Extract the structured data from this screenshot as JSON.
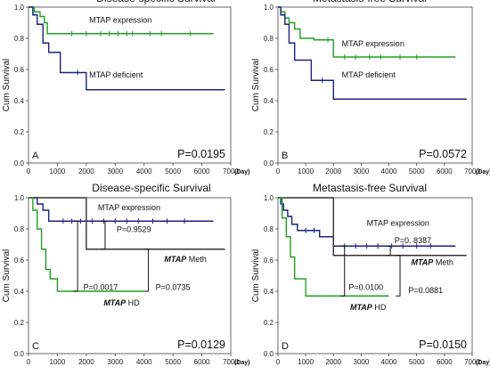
{
  "chart_data": [
    {
      "panel": "A",
      "type": "line",
      "title": "Disease-specific Survival",
      "ylabel": "Cum Survival",
      "x_unit": "(Day)",
      "pvalue": "P=0.0195",
      "xlim": [
        0,
        7000
      ],
      "ylim": [
        0,
        1.0
      ],
      "xticks": [
        "0",
        "1000",
        "2000",
        "3000",
        "4000",
        "5000",
        "6000",
        "7000"
      ],
      "yticks": [
        "0.0",
        "0.2",
        "0.4",
        "0.6",
        "0.8",
        "1.0"
      ],
      "series": [
        {
          "name": "MTAP expression",
          "color": "#22a022",
          "x": [
            0,
            200,
            400,
            550,
            650,
            6400
          ],
          "y": [
            1.0,
            0.97,
            0.94,
            0.9,
            0.83,
            0.83
          ],
          "censor_x": [
            1500,
            2000,
            2500,
            2800,
            3100,
            3400,
            3600,
            4200,
            4600,
            5600
          ]
        },
        {
          "name": "MTAP deficient",
          "color": "#1a237e",
          "x": [
            0,
            150,
            300,
            500,
            700,
            1100,
            1500,
            2000,
            6800
          ],
          "y": [
            1.0,
            0.95,
            0.89,
            0.77,
            0.71,
            0.58,
            0.58,
            0.47,
            0.47
          ],
          "censor_x": [
            1700
          ]
        }
      ],
      "labels": [
        {
          "text": "MTAP expression",
          "x": 2100,
          "y": 0.9,
          "italic_prefix": ""
        },
        {
          "text": "MTAP deficient",
          "x": 2100,
          "y": 0.55,
          "italic_prefix": ""
        }
      ],
      "brackets": []
    },
    {
      "panel": "B",
      "type": "line",
      "title": "Metastasis-free Survival",
      "ylabel": "Cum Survival",
      "x_unit": "(Day)",
      "pvalue": "P=0.0572",
      "xlim": [
        0,
        7000
      ],
      "ylim": [
        0,
        1.0
      ],
      "xticks": [
        "0",
        "1000",
        "2000",
        "3000",
        "4000",
        "5000",
        "6000",
        "7000"
      ],
      "yticks": [
        "0.0",
        "0.2",
        "0.4",
        "0.6",
        "0.8",
        "1.0"
      ],
      "series": [
        {
          "name": "MTAP expression",
          "color": "#22a022",
          "x": [
            0,
            100,
            250,
            400,
            600,
            800,
            1300,
            2000,
            6400
          ],
          "y": [
            1.0,
            0.97,
            0.93,
            0.9,
            0.86,
            0.8,
            0.79,
            0.68,
            0.68
          ],
          "censor_x": [
            1800,
            2400,
            2800,
            3300,
            3700,
            4400,
            5000
          ]
        },
        {
          "name": "MTAP deficient",
          "color": "#1a237e",
          "x": [
            0,
            100,
            250,
            400,
            600,
            1000,
            1200,
            2000,
            6800
          ],
          "y": [
            1.0,
            0.95,
            0.89,
            0.77,
            0.66,
            0.66,
            0.53,
            0.41,
            0.41
          ],
          "censor_x": [
            1600
          ]
        }
      ],
      "labels": [
        {
          "text": "MTAP expression",
          "x": 2300,
          "y": 0.75,
          "italic_prefix": ""
        },
        {
          "text": "MTAP deficient",
          "x": 2300,
          "y": 0.55,
          "italic_prefix": ""
        }
      ],
      "brackets": []
    },
    {
      "panel": "C",
      "type": "line",
      "title": "Disease-specific Survival",
      "ylabel": "Cum Survival",
      "x_unit": "(Day)",
      "pvalue": "P=0.0129",
      "xlim": [
        0,
        7000
      ],
      "ylim": [
        0,
        1.0
      ],
      "xticks": [
        "0",
        "1000",
        "2000",
        "3000",
        "4000",
        "5000",
        "6000",
        "7000"
      ],
      "yticks": [
        "0.0",
        "0.2",
        "0.4",
        "0.6",
        "0.8",
        "1.0"
      ],
      "series": [
        {
          "name": "MTAP expression",
          "color": "#1a237e",
          "x": [
            0,
            300,
            500,
            700,
            6400
          ],
          "y": [
            1.0,
            0.96,
            0.92,
            0.85,
            0.85
          ],
          "censor_x": [
            1200,
            1500,
            1800,
            2200,
            2600,
            3000,
            3400,
            3800,
            4300,
            4800,
            5400
          ]
        },
        {
          "name": "MTAP Meth",
          "color": "#333333",
          "x": [
            0,
            1000,
            2000,
            6800
          ],
          "y": [
            1.0,
            1.0,
            0.67,
            0.67
          ],
          "censor_x": []
        },
        {
          "name": "MTAP HD",
          "color": "#22a022",
          "x": [
            0,
            150,
            300,
            450,
            600,
            750,
            1000,
            4000
          ],
          "y": [
            1.0,
            0.92,
            0.8,
            0.67,
            0.54,
            0.48,
            0.4,
            0.4
          ],
          "censor_x": []
        }
      ],
      "labels": [
        {
          "text": "MTAP expression",
          "x": 2400,
          "y": 0.92,
          "italic_prefix": ""
        },
        {
          "text": "Meth",
          "x": 4700,
          "y": 0.59,
          "italic_prefix": "MTAP"
        },
        {
          "text": "HD",
          "x": 2600,
          "y": 0.31,
          "italic_prefix": "MTAP"
        },
        {
          "text": "P=0.9529",
          "x": 3050,
          "y": 0.78,
          "italic_prefix": ""
        },
        {
          "text": "P=0.0017",
          "x": 1900,
          "y": 0.41,
          "italic_prefix": ""
        },
        {
          "text": "P=0.0735",
          "x": 4400,
          "y": 0.41,
          "italic_prefix": ""
        }
      ],
      "brackets": [
        {
          "x1": 2650,
          "y1": 0.85,
          "x2": 2650,
          "y2": 0.67,
          "tick": 150
        },
        {
          "x1": 1700,
          "y1": 0.85,
          "x2": 1700,
          "y2": 0.4,
          "tick": 150
        },
        {
          "x1": 4150,
          "y1": 0.67,
          "x2": 4150,
          "y2": 0.4,
          "tick": 150
        }
      ]
    },
    {
      "panel": "D",
      "type": "line",
      "title": "Metastasis-free Survival",
      "ylabel": "Cum Survival",
      "x_unit": "(Day)",
      "pvalue": "P=0.0150",
      "xlim": [
        0,
        7000
      ],
      "ylim": [
        0,
        1.0
      ],
      "xticks": [
        "0",
        "1000",
        "2000",
        "3000",
        "4000",
        "5000",
        "6000",
        "7000"
      ],
      "yticks": [
        "0.0",
        "0.2",
        "0.4",
        "0.6",
        "0.8",
        "1.0"
      ],
      "series": [
        {
          "name": "MTAP expression",
          "color": "#1a237e",
          "x": [
            0,
            100,
            200,
            350,
            500,
            700,
            1500,
            2000,
            6400
          ],
          "y": [
            1.0,
            0.96,
            0.92,
            0.88,
            0.83,
            0.79,
            0.75,
            0.69,
            0.69
          ],
          "censor_x": [
            1000,
            1300,
            2400,
            2800,
            3200,
            3600,
            4100,
            4500,
            5000,
            5500
          ]
        },
        {
          "name": "MTAP Meth",
          "color": "#333333",
          "x": [
            0,
            1000,
            2000,
            6800
          ],
          "y": [
            1.0,
            1.0,
            0.63,
            0.63
          ],
          "censor_x": []
        },
        {
          "name": "MTAP HD",
          "color": "#22a022",
          "x": [
            0,
            150,
            300,
            450,
            600,
            1000,
            4000
          ],
          "y": [
            1.0,
            0.87,
            0.75,
            0.62,
            0.48,
            0.37,
            0.37
          ],
          "censor_x": []
        }
      ],
      "labels": [
        {
          "text": "MTAP expression",
          "x": 3200,
          "y": 0.82,
          "italic_prefix": ""
        },
        {
          "text": "P=0. 8387",
          "x": 4200,
          "y": 0.71,
          "italic_prefix": ""
        },
        {
          "text": "Meth",
          "x": 4800,
          "y": 0.57,
          "italic_prefix": "MTAP"
        },
        {
          "text": "P=0.0100",
          "x": 2550,
          "y": 0.41,
          "italic_prefix": ""
        },
        {
          "text": "P=0.0881",
          "x": 4700,
          "y": 0.39,
          "italic_prefix": ""
        },
        {
          "text": "HD",
          "x": 2600,
          "y": 0.28,
          "italic_prefix": "MTAP"
        }
      ],
      "brackets": [
        {
          "x1": 4050,
          "y1": 0.69,
          "x2": 4050,
          "y2": 0.63,
          "tick": 150
        },
        {
          "x1": 2400,
          "y1": 0.69,
          "x2": 2400,
          "y2": 0.37,
          "tick": 150
        },
        {
          "x1": 4400,
          "y1": 0.63,
          "x2": 4400,
          "y2": 0.37,
          "tick": 150
        }
      ]
    }
  ]
}
